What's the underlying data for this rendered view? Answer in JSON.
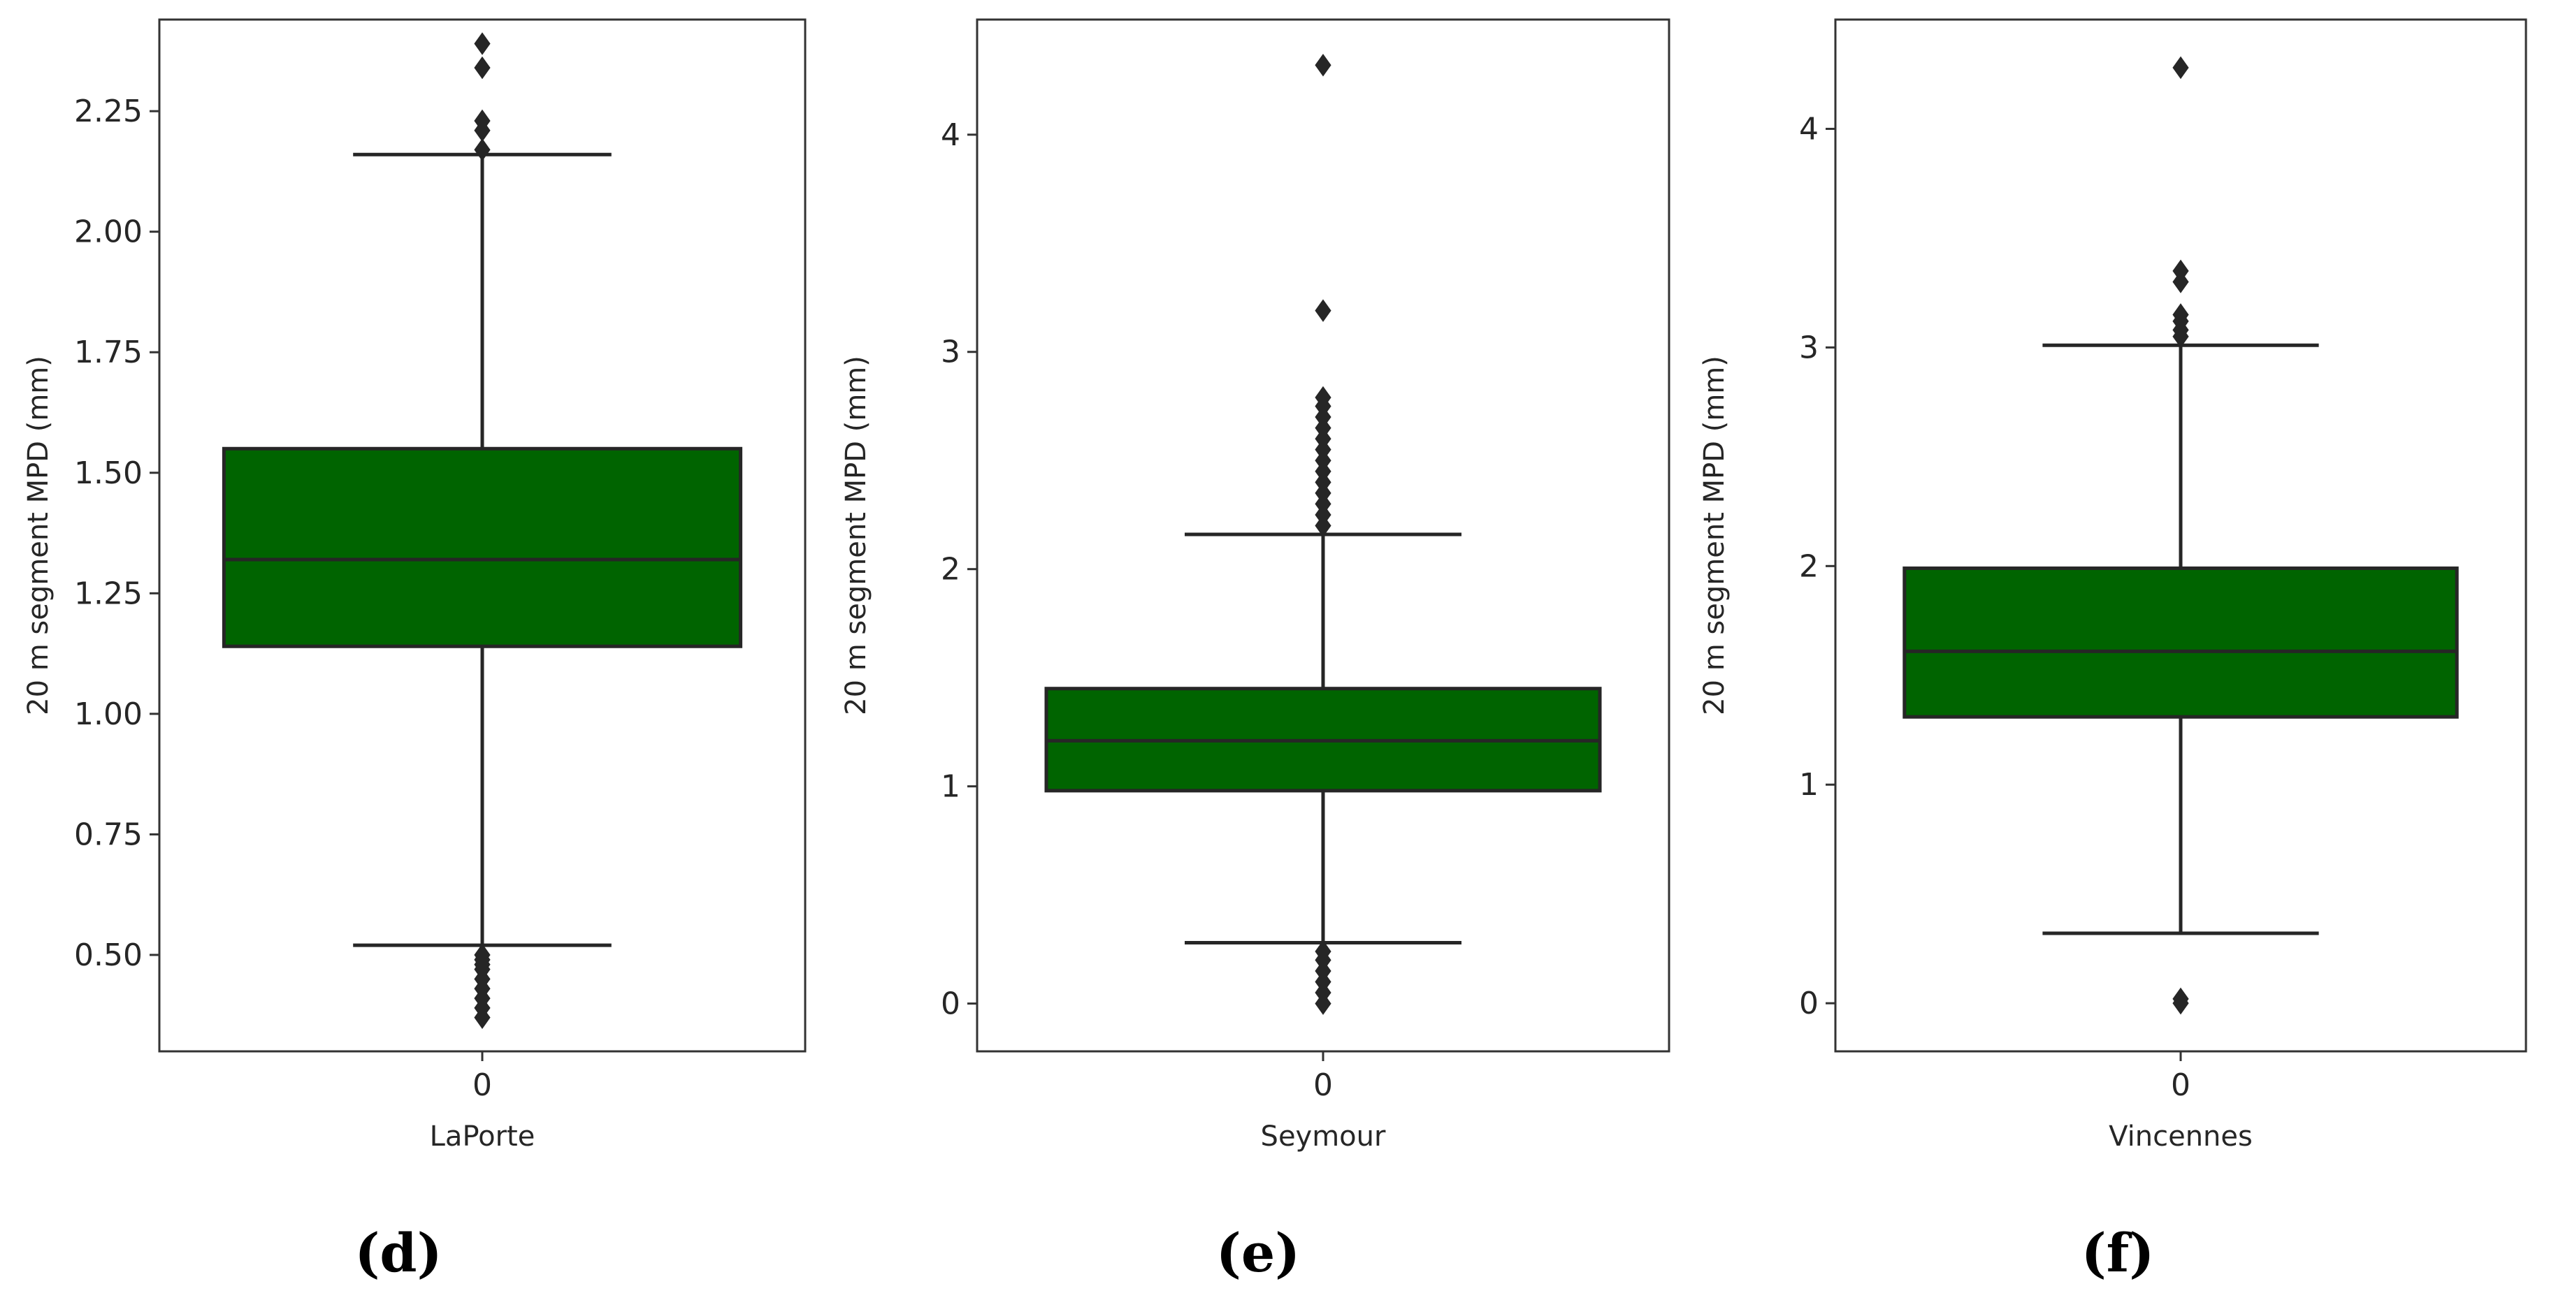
{
  "chart_data": [
    {
      "type": "box",
      "panel_label": "(d)",
      "xlabel": "LaPorte",
      "ylabel": "20 m segment MPD (mm)",
      "categories": [
        "0"
      ],
      "ylim": [
        0.3,
        2.44
      ],
      "yticks": [
        0.5,
        0.75,
        1.0,
        1.25,
        1.5,
        1.75,
        2.0,
        2.25
      ],
      "ytick_labels": [
        "0.50",
        "0.75",
        "1.00",
        "1.25",
        "1.50",
        "1.75",
        "2.00",
        "2.25"
      ],
      "box": {
        "whisker_low": 0.52,
        "q1": 1.14,
        "median": 1.32,
        "q3": 1.55,
        "whisker_high": 2.16
      },
      "outliers": [
        0.37,
        0.39,
        0.41,
        0.43,
        0.45,
        0.47,
        0.48,
        0.49,
        0.5,
        2.17,
        2.21,
        2.23,
        2.34,
        2.39
      ],
      "box_color": "#006400",
      "line_color": "#262626"
    },
    {
      "type": "box",
      "panel_label": "(e)",
      "xlabel": "Seymour",
      "ylabel": "20 m segment MPD (mm)",
      "categories": [
        "0"
      ],
      "ylim": [
        -0.22,
        4.53
      ],
      "yticks": [
        0,
        1,
        2,
        3,
        4
      ],
      "ytick_labels": [
        "0",
        "1",
        "2",
        "3",
        "4"
      ],
      "box": {
        "whisker_low": 0.28,
        "q1": 0.98,
        "median": 1.21,
        "q3": 1.45,
        "whisker_high": 2.16
      },
      "outliers": [
        0.0,
        0.05,
        0.1,
        0.15,
        0.2,
        0.24,
        2.2,
        2.25,
        2.3,
        2.35,
        2.4,
        2.45,
        2.5,
        2.55,
        2.6,
        2.65,
        2.7,
        2.75,
        2.79,
        3.19,
        4.32
      ],
      "box_color": "#006400",
      "line_color": "#262626"
    },
    {
      "type": "box",
      "panel_label": "(f)",
      "xlabel": "Vincennes",
      "ylabel": "20 m segment MPD (mm)",
      "categories": [
        "0"
      ],
      "ylim": [
        -0.22,
        4.5
      ],
      "yticks": [
        0,
        1,
        2,
        3,
        4
      ],
      "ytick_labels": [
        "0",
        "1",
        "2",
        "3",
        "4"
      ],
      "box": {
        "whisker_low": 0.32,
        "q1": 1.31,
        "median": 1.61,
        "q3": 1.99,
        "whisker_high": 3.01
      },
      "outliers": [
        0.0,
        0.02,
        3.05,
        3.08,
        3.12,
        3.15,
        3.3,
        3.35,
        4.28
      ],
      "box_color": "#006400",
      "line_color": "#262626"
    }
  ]
}
